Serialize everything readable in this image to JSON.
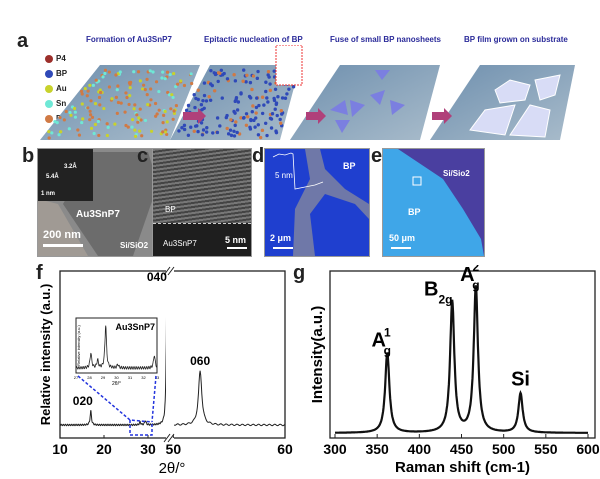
{
  "panel_a": {
    "label": "a",
    "stages": [
      "Formation of Au3SnP7",
      "Epitactic nucleation of BP",
      "Fuse of small BP nanosheets",
      "BP film grown on substrate"
    ],
    "legend": [
      {
        "name": "P4",
        "color": "#9c2f2b"
      },
      {
        "name": "BP",
        "color": "#2f49b8"
      },
      {
        "name": "Au",
        "color": "#c8d22c"
      },
      {
        "name": "Sn",
        "color": "#6fe8d6"
      },
      {
        "name": "P",
        "color": "#d07a45"
      }
    ],
    "arrow_color": "#b0407a"
  },
  "panel_b": {
    "label": "b",
    "inset_d1": "3.2Å",
    "inset_d2": "5.4Å",
    "inset_scale": "1 nm",
    "material": "Au3SnP7",
    "substrate": "Si/SiO2",
    "scale": "200 nm"
  },
  "panel_c": {
    "label": "c",
    "top": "BP",
    "bottom": "Au3SnP7",
    "scale": "5 nm"
  },
  "panel_d": {
    "label": "d",
    "material": "BP",
    "height": "5 nm",
    "scale": "2 μm"
  },
  "panel_e": {
    "label": "e",
    "substrate": "Si/Sio2",
    "material": "BP",
    "scale": "50 μm"
  },
  "chart_data": [
    {
      "panel": "f",
      "type": "line",
      "xlabel": "2θ/°",
      "ylabel": "Relative intensity (a.u.)",
      "x_ticks": [
        "10",
        "20",
        "30",
        "50",
        "60"
      ],
      "x_segments": [
        [
          10,
          35
        ],
        [
          49.7,
          60
        ]
      ],
      "peaks": [
        {
          "x": 17.0,
          "h": 0.1,
          "label": "020"
        },
        {
          "x": 34.3,
          "h": 1.0,
          "label": "040"
        },
        {
          "x": 52.4,
          "h": 0.38,
          "label": "060"
        },
        {
          "x": 28.2,
          "h": 0.02,
          "label": ""
        },
        {
          "x": 29.4,
          "h": 0.03,
          "label": ""
        }
      ],
      "inset": {
        "title": "Au3SnP7",
        "xlabel": "2θ/°",
        "ylabel": "Relative intensity (a.u.)",
        "x_ticks": [
          "27",
          "28",
          "29",
          "30",
          "31",
          "32",
          "33"
        ],
        "xlim": [
          27,
          33
        ],
        "peaks": [
          {
            "x": 28.1,
            "h": 0.35
          },
          {
            "x": 28.6,
            "h": 0.18
          },
          {
            "x": 29.2,
            "h": 1.0
          },
          {
            "x": 30.1,
            "h": 0.08
          },
          {
            "x": 32.8,
            "h": 0.3
          }
        ]
      }
    },
    {
      "panel": "g",
      "type": "line",
      "xlabel": "Raman shift (cm-1)",
      "ylabel": "Intensity(a.u.)",
      "xlim": [
        300,
        600
      ],
      "x_ticks": [
        "300",
        "350",
        "400",
        "450",
        "500",
        "550",
        "600"
      ],
      "peaks": [
        {
          "x": 362,
          "h": 0.55,
          "label": "A",
          "sup": "1",
          "sub": "g"
        },
        {
          "x": 439,
          "h": 0.9,
          "label": "B",
          "sup": "",
          "sub": "2g"
        },
        {
          "x": 467,
          "h": 1.0,
          "label": "A",
          "sup": "2",
          "sub": "g"
        },
        {
          "x": 520,
          "h": 0.27,
          "label": "Si",
          "sup": "",
          "sub": ""
        }
      ]
    }
  ]
}
